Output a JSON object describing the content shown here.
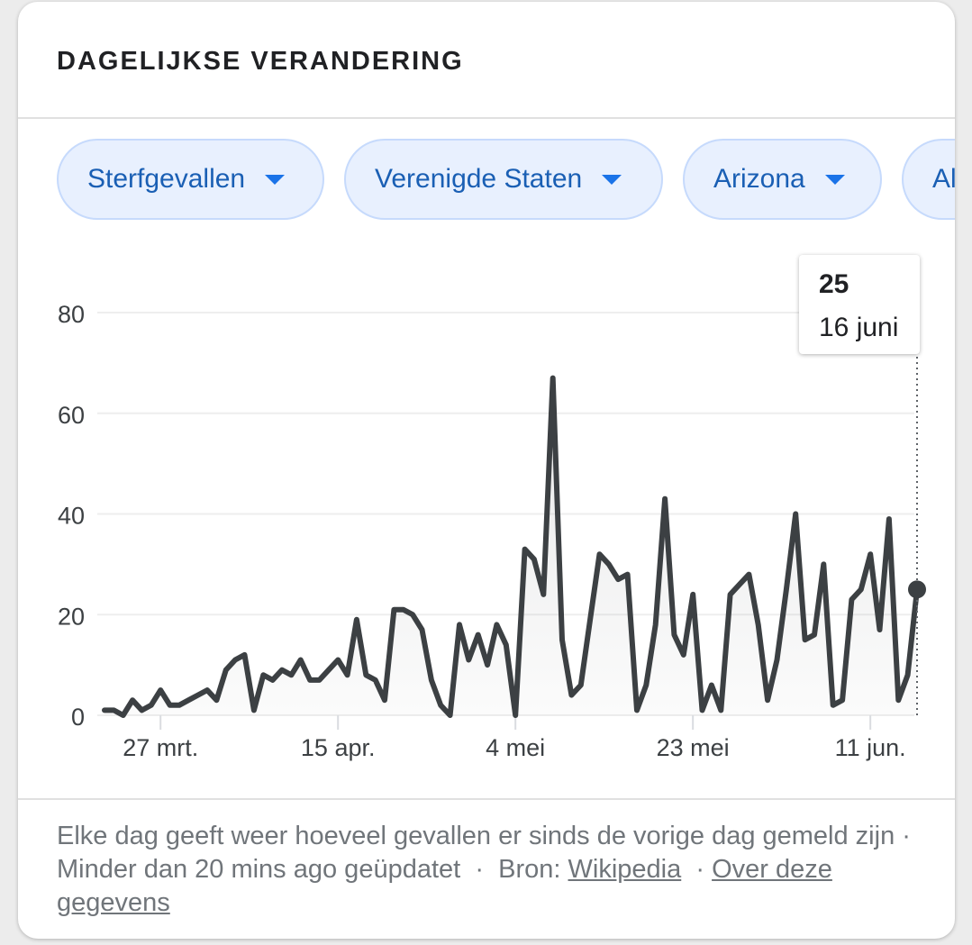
{
  "header": {
    "title": "DAGELIJKSE VERANDERING"
  },
  "filters": [
    {
      "label": "Sterfgevallen"
    },
    {
      "label": "Verenigde Staten"
    },
    {
      "label": "Arizona"
    },
    {
      "label": "Al"
    }
  ],
  "tooltip": {
    "value": "25",
    "date": "16 juni"
  },
  "footer": {
    "description": "Elke dag geeft weer hoeveel gevallen er sinds de vorige dag gemeld zijn",
    "updated": "Minder dan 20 mins ago geüpdatet",
    "source_label": "Bron:",
    "source_link": "Wikipedia",
    "about_link": "Over deze gegevens",
    "separator": "·"
  },
  "colors": {
    "line": "#3c4043",
    "chip_bg": "#e8f0fe",
    "chip_text": "#1a5fb4",
    "grid": "#eeeeee"
  },
  "chart_data": {
    "type": "area",
    "title": "DAGELIJKSE VERANDERING",
    "xlabel": "",
    "ylabel": "",
    "ylim": [
      0,
      80
    ],
    "yticks": [
      0,
      20,
      40,
      60,
      80
    ],
    "xtick_labels": [
      "27 mrt.",
      "15 apr.",
      "4 mei",
      "23 mei",
      "11 jun."
    ],
    "xticks": [
      "2020-03-27",
      "2020-04-15",
      "2020-05-04",
      "2020-05-23",
      "2020-06-11"
    ],
    "x": [
      "2020-03-21",
      "2020-03-22",
      "2020-03-23",
      "2020-03-24",
      "2020-03-25",
      "2020-03-26",
      "2020-03-27",
      "2020-03-28",
      "2020-03-29",
      "2020-03-30",
      "2020-03-31",
      "2020-04-01",
      "2020-04-02",
      "2020-04-03",
      "2020-04-04",
      "2020-04-05",
      "2020-04-06",
      "2020-04-07",
      "2020-04-08",
      "2020-04-09",
      "2020-04-10",
      "2020-04-11",
      "2020-04-12",
      "2020-04-13",
      "2020-04-14",
      "2020-04-15",
      "2020-04-16",
      "2020-04-17",
      "2020-04-18",
      "2020-04-19",
      "2020-04-20",
      "2020-04-21",
      "2020-04-22",
      "2020-04-23",
      "2020-04-24",
      "2020-04-25",
      "2020-04-26",
      "2020-04-27",
      "2020-04-28",
      "2020-04-29",
      "2020-04-30",
      "2020-05-01",
      "2020-05-02",
      "2020-05-03",
      "2020-05-04",
      "2020-05-05",
      "2020-05-06",
      "2020-05-07",
      "2020-05-08",
      "2020-05-09",
      "2020-05-10",
      "2020-05-11",
      "2020-05-12",
      "2020-05-13",
      "2020-05-14",
      "2020-05-15",
      "2020-05-16",
      "2020-05-17",
      "2020-05-18",
      "2020-05-19",
      "2020-05-20",
      "2020-05-21",
      "2020-05-22",
      "2020-05-23",
      "2020-05-24",
      "2020-05-25",
      "2020-05-26",
      "2020-05-27",
      "2020-05-28",
      "2020-05-29",
      "2020-05-30",
      "2020-05-31",
      "2020-06-01",
      "2020-06-02",
      "2020-06-03",
      "2020-06-04",
      "2020-06-05",
      "2020-06-06",
      "2020-06-07",
      "2020-06-08",
      "2020-06-09",
      "2020-06-10",
      "2020-06-11",
      "2020-06-12",
      "2020-06-13",
      "2020-06-14",
      "2020-06-15",
      "2020-06-16"
    ],
    "series": [
      {
        "values": [
          1,
          1,
          0,
          3,
          1,
          2,
          5,
          2,
          2,
          3,
          4,
          5,
          3,
          9,
          11,
          12,
          1,
          8,
          7,
          9,
          8,
          11,
          7,
          7,
          9,
          11,
          8,
          19,
          8,
          7,
          3,
          21,
          21,
          20,
          17,
          7,
          2,
          0,
          18,
          11,
          16,
          10,
          18,
          14,
          0,
          33,
          31,
          24,
          67,
          15,
          4,
          6,
          19,
          32,
          30,
          27,
          28,
          1,
          6,
          18,
          43,
          16,
          12,
          24,
          1,
          6,
          1,
          24,
          26,
          28,
          18,
          3,
          11,
          25,
          40,
          15,
          16,
          30,
          2,
          3,
          23,
          25,
          32,
          17,
          39,
          3,
          8,
          25
        ]
      }
    ],
    "highlight": {
      "x": "2020-06-16",
      "y": 25
    },
    "grid": true,
    "legend": "none"
  }
}
